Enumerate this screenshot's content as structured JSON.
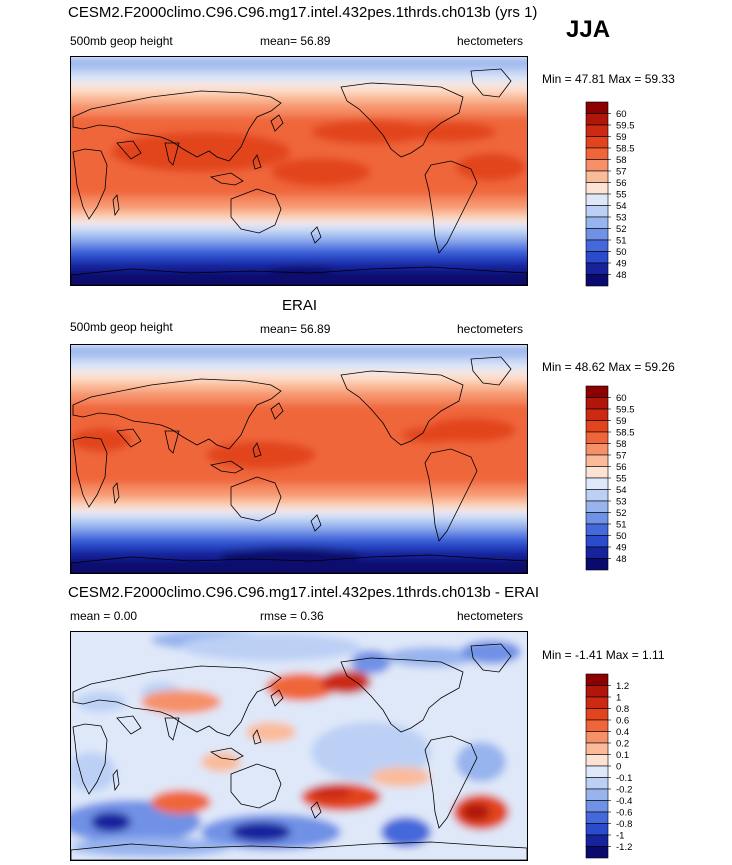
{
  "season": "JJA",
  "panels": [
    {
      "id": "model",
      "title": "CESM2.F2000climo.C96.C96.mg17.intel.432pes.1thrds.ch013b (yrs 1)",
      "left_label": "500mb geop height",
      "center_label": "mean=  56.89",
      "right_label": "hectometers",
      "minmax": "Min =  47.81 Max =  59.33",
      "kind": "abs"
    },
    {
      "id": "obs",
      "title": "ERAI",
      "left_label": "500mb geop height",
      "center_label": "mean=  56.89",
      "right_label": "hectometers",
      "minmax": "Min =  48.62 Max =  59.26",
      "kind": "abs"
    },
    {
      "id": "diff",
      "title": "CESM2.F2000climo.C96.C96.mg17.intel.432pes.1thrds.ch013b - ERAI",
      "left_label": "mean =   0.00",
      "center_label": "rmse =   0.36",
      "right_label": "hectometers",
      "minmax": "Min =  -1.41 Max =   1.11",
      "kind": "diff"
    }
  ],
  "chart_data": [
    {
      "type": "heatmap",
      "title": "CESM2.F2000climo.C96.C96.mg17.intel.432pes.1thrds.ch013b (yrs 1)",
      "variable": "500mb geop height",
      "units": "hectometers",
      "mean": 56.89,
      "min": 47.81,
      "max": 59.33,
      "colorbar_levels": [
        "60",
        "59.5",
        "59",
        "58.5",
        "58",
        "57",
        "56",
        "55",
        "54",
        "53",
        "52",
        "51",
        "50",
        "49",
        "48"
      ],
      "colors": [
        "#8b0000",
        "#b0160a",
        "#cc2a12",
        "#e2451e",
        "#f0663a",
        "#f69068",
        "#fabb9a",
        "#fde3d3",
        "#dfe8f9",
        "#bcd0f5",
        "#97b4ee",
        "#6f91e6",
        "#4569db",
        "#2a4bcc",
        "#16239d",
        "#0a0a6e"
      ]
    },
    {
      "type": "heatmap",
      "title": "ERAI",
      "variable": "500mb geop height",
      "units": "hectometers",
      "mean": 56.89,
      "min": 48.62,
      "max": 59.26,
      "colorbar_levels": [
        "60",
        "59.5",
        "59",
        "58.5",
        "58",
        "57",
        "56",
        "55",
        "54",
        "53",
        "52",
        "51",
        "50",
        "49",
        "48"
      ],
      "colors": [
        "#8b0000",
        "#b0160a",
        "#cc2a12",
        "#e2451e",
        "#f0663a",
        "#f69068",
        "#fabb9a",
        "#fde3d3",
        "#dfe8f9",
        "#bcd0f5",
        "#97b4ee",
        "#6f91e6",
        "#4569db",
        "#2a4bcc",
        "#16239d",
        "#0a0a6e"
      ]
    },
    {
      "type": "heatmap",
      "title": "CESM2.F2000climo.C96.C96.mg17.intel.432pes.1thrds.ch013b - ERAI",
      "units": "hectometers",
      "mean": 0.0,
      "rmse": 0.36,
      "min": -1.41,
      "max": 1.11,
      "colorbar_levels": [
        "1.2",
        "1",
        "0.8",
        "0.6",
        "0.4",
        "0.2",
        "0.1",
        "0",
        "-0.1",
        "-0.2",
        "-0.4",
        "-0.6",
        "-0.8",
        "-1",
        "-1.2"
      ],
      "colors": [
        "#8b0000",
        "#b0160a",
        "#cc2a12",
        "#e2451e",
        "#f0663a",
        "#f69068",
        "#fabb9a",
        "#fde3d3",
        "#dfe8f9",
        "#bcd0f5",
        "#97b4ee",
        "#6f91e6",
        "#4569db",
        "#2a4bcc",
        "#16239d",
        "#0a0a6e"
      ]
    }
  ]
}
